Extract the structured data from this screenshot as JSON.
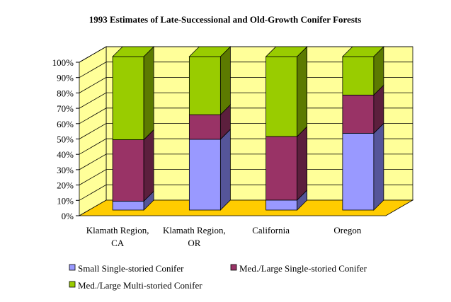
{
  "chart_data": {
    "type": "bar",
    "stacked": "percent",
    "three_d": true,
    "title": "1993 Estimates of Late-Successional and Old-Growth Conifer Forests",
    "categories": [
      [
        "Klamath Region,",
        "CA"
      ],
      [
        "Klamath Region,",
        "OR"
      ],
      [
        "California"
      ],
      [
        "Oregon"
      ]
    ],
    "y_ticks": [
      "0%",
      "10%",
      "20%",
      "30%",
      "40%",
      "50%",
      "60%",
      "70%",
      "80%",
      "90%",
      "100%"
    ],
    "ylim": [
      0,
      100
    ],
    "series": [
      {
        "name": "Small Single-storied Conifer",
        "color": "#9999ff",
        "side_color": "#555599",
        "values": [
          140300,
          596200,
          183500,
          3260600
        ],
        "labels": [
          "140300",
          "596200",
          "183500",
          "3260600"
        ]
      },
      {
        "name": "Med./Large Single-storied Conifer",
        "color": "#993366",
        "side_color": "#5c1f3d",
        "values": [
          963200,
          207500,
          1170500,
          1623000
        ],
        "labels": [
          "963200",
          "207500",
          "1170500",
          "1623000"
        ]
      },
      {
        "name": "Med./Large Multi-storied Conifer",
        "color": "#99cc00",
        "side_color": "#5c7a00",
        "values": [
          1303900,
          489500,
          1470800,
          1633100
        ],
        "labels": [
          "1303900",
          "489500",
          "1470800",
          "1633100"
        ]
      }
    ],
    "colors": {
      "wall": "#ffff99",
      "floor": "#ffcc00",
      "gridline": "#000000"
    },
    "legend_position": "bottom",
    "grid": true
  }
}
